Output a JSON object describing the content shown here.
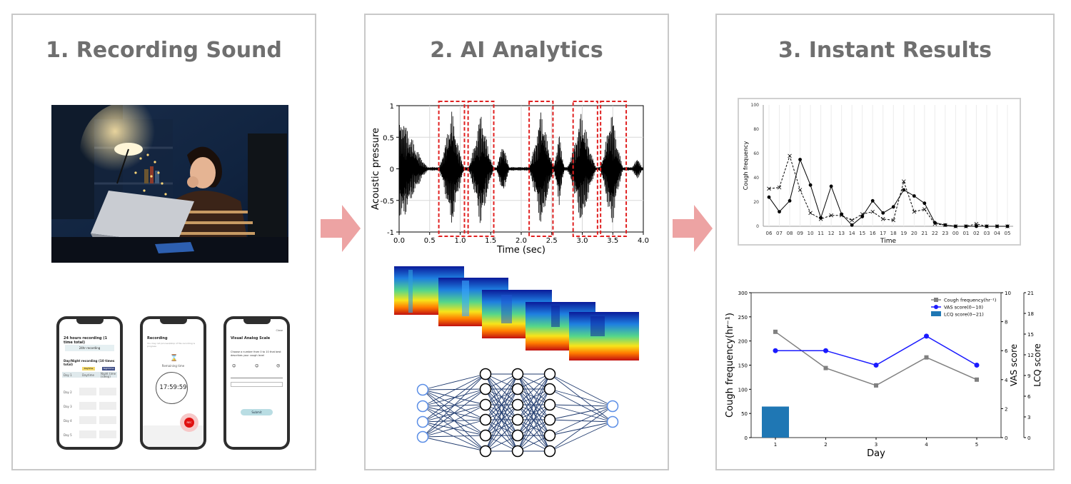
{
  "panels": [
    {
      "title": "1. Recording Sound"
    },
    {
      "title": "2. AI Analytics"
    },
    {
      "title": "3. Instant Results"
    }
  ],
  "arrow_icon": "right-arrow-icon",
  "colors": {
    "arrow": "#eda3a3",
    "title": "#6f6f6f",
    "box": "#e02020",
    "vas": "#1a1aff",
    "cough": "#808080",
    "lcq": "#1f77b4"
  },
  "phones": {
    "p1": {
      "title": "24 hours recording (1 time total)",
      "btn": "24hr recording",
      "subtitle": "Day/Night recording (10 times total)",
      "tag1": "Daytime",
      "tag2": "Nighttime",
      "col1": "Daytime",
      "col2": "Night time (sleep)",
      "days": [
        "Day 1",
        "Day 2",
        "Day 3",
        "Day 4",
        "Day 5"
      ]
    },
    "p2": {
      "title": "Recording",
      "desc": "You may not proceed/stop of file recording is progress",
      "label": "Remaining time",
      "time": "17:59:59",
      "rec": "REC"
    },
    "p3": {
      "title": "Visual Analog Scale",
      "close": "Close",
      "question": "Choose a number from 0 to 10 that best describes your cough level",
      "submit": "Submit"
    }
  },
  "waveform": {
    "ylabel": "Acoustic pressure",
    "xlabel": "Time (sec)",
    "yticks": [
      "1",
      "0.5",
      "0",
      "-0.5",
      "-1"
    ],
    "xticks": [
      "0.0",
      "0.5",
      "1.0",
      "1.5",
      "2.0",
      "2.5",
      "3.0",
      "3.5",
      "4.0"
    ],
    "cough_boxes_sec": [
      [
        0.65,
        1.07
      ],
      [
        1.13,
        1.55
      ],
      [
        2.13,
        2.52
      ],
      [
        2.85,
        3.25
      ],
      [
        3.3,
        3.72
      ]
    ]
  },
  "chart_data": [
    {
      "type": "line",
      "xlabel": "Time",
      "ylabel": "Cough frequency",
      "ylim": [
        0,
        100
      ],
      "yticks": [
        0,
        20,
        40,
        60,
        80,
        100
      ],
      "categories": [
        "06",
        "07",
        "08",
        "09",
        "10",
        "11",
        "12",
        "13",
        "14",
        "15",
        "16",
        "17",
        "18",
        "19",
        "20",
        "21",
        "22",
        "23",
        "00",
        "01",
        "02",
        "03",
        "04",
        "05"
      ],
      "series": [
        {
          "values": [
            24,
            12,
            21,
            55,
            34,
            7,
            33,
            10,
            1,
            8,
            21,
            11,
            16,
            30,
            25,
            19,
            3,
            1,
            0,
            0,
            0,
            0,
            0,
            0
          ]
        },
        {
          "values": [
            31,
            32,
            58,
            30,
            11,
            6,
            9,
            9,
            5,
            10,
            12,
            6,
            5,
            37,
            12,
            14,
            2,
            1,
            0,
            0,
            2,
            0,
            0,
            0
          ]
        }
      ],
      "grid": "x"
    },
    {
      "type": "line",
      "xlabel": "Day",
      "ylabel": "Cough frequency(hr⁻¹)",
      "ylabel_right": [
        "VAS score",
        "LCQ score"
      ],
      "categories": [
        "1",
        "2",
        "3",
        "4",
        "5"
      ],
      "ylim": [
        0,
        300
      ],
      "yticks": [
        0,
        50,
        100,
        150,
        200,
        250,
        300
      ],
      "vas_ticks": [
        0,
        2,
        4,
        6,
        8,
        10
      ],
      "lcq_ticks": [
        0,
        3,
        6,
        9,
        12,
        15,
        18,
        21
      ],
      "series": [
        {
          "name": "Cough frequency(hr⁻¹)",
          "values": [
            219,
            144,
            108,
            166,
            120
          ]
        },
        {
          "name": "VAS score(0~10)",
          "values": [
            6,
            6,
            5,
            7,
            5
          ]
        },
        {
          "name": "LCQ score(0~21)",
          "values": [
            4.5,
            null,
            null,
            null,
            null
          ]
        }
      ],
      "legend": "top-right"
    }
  ]
}
